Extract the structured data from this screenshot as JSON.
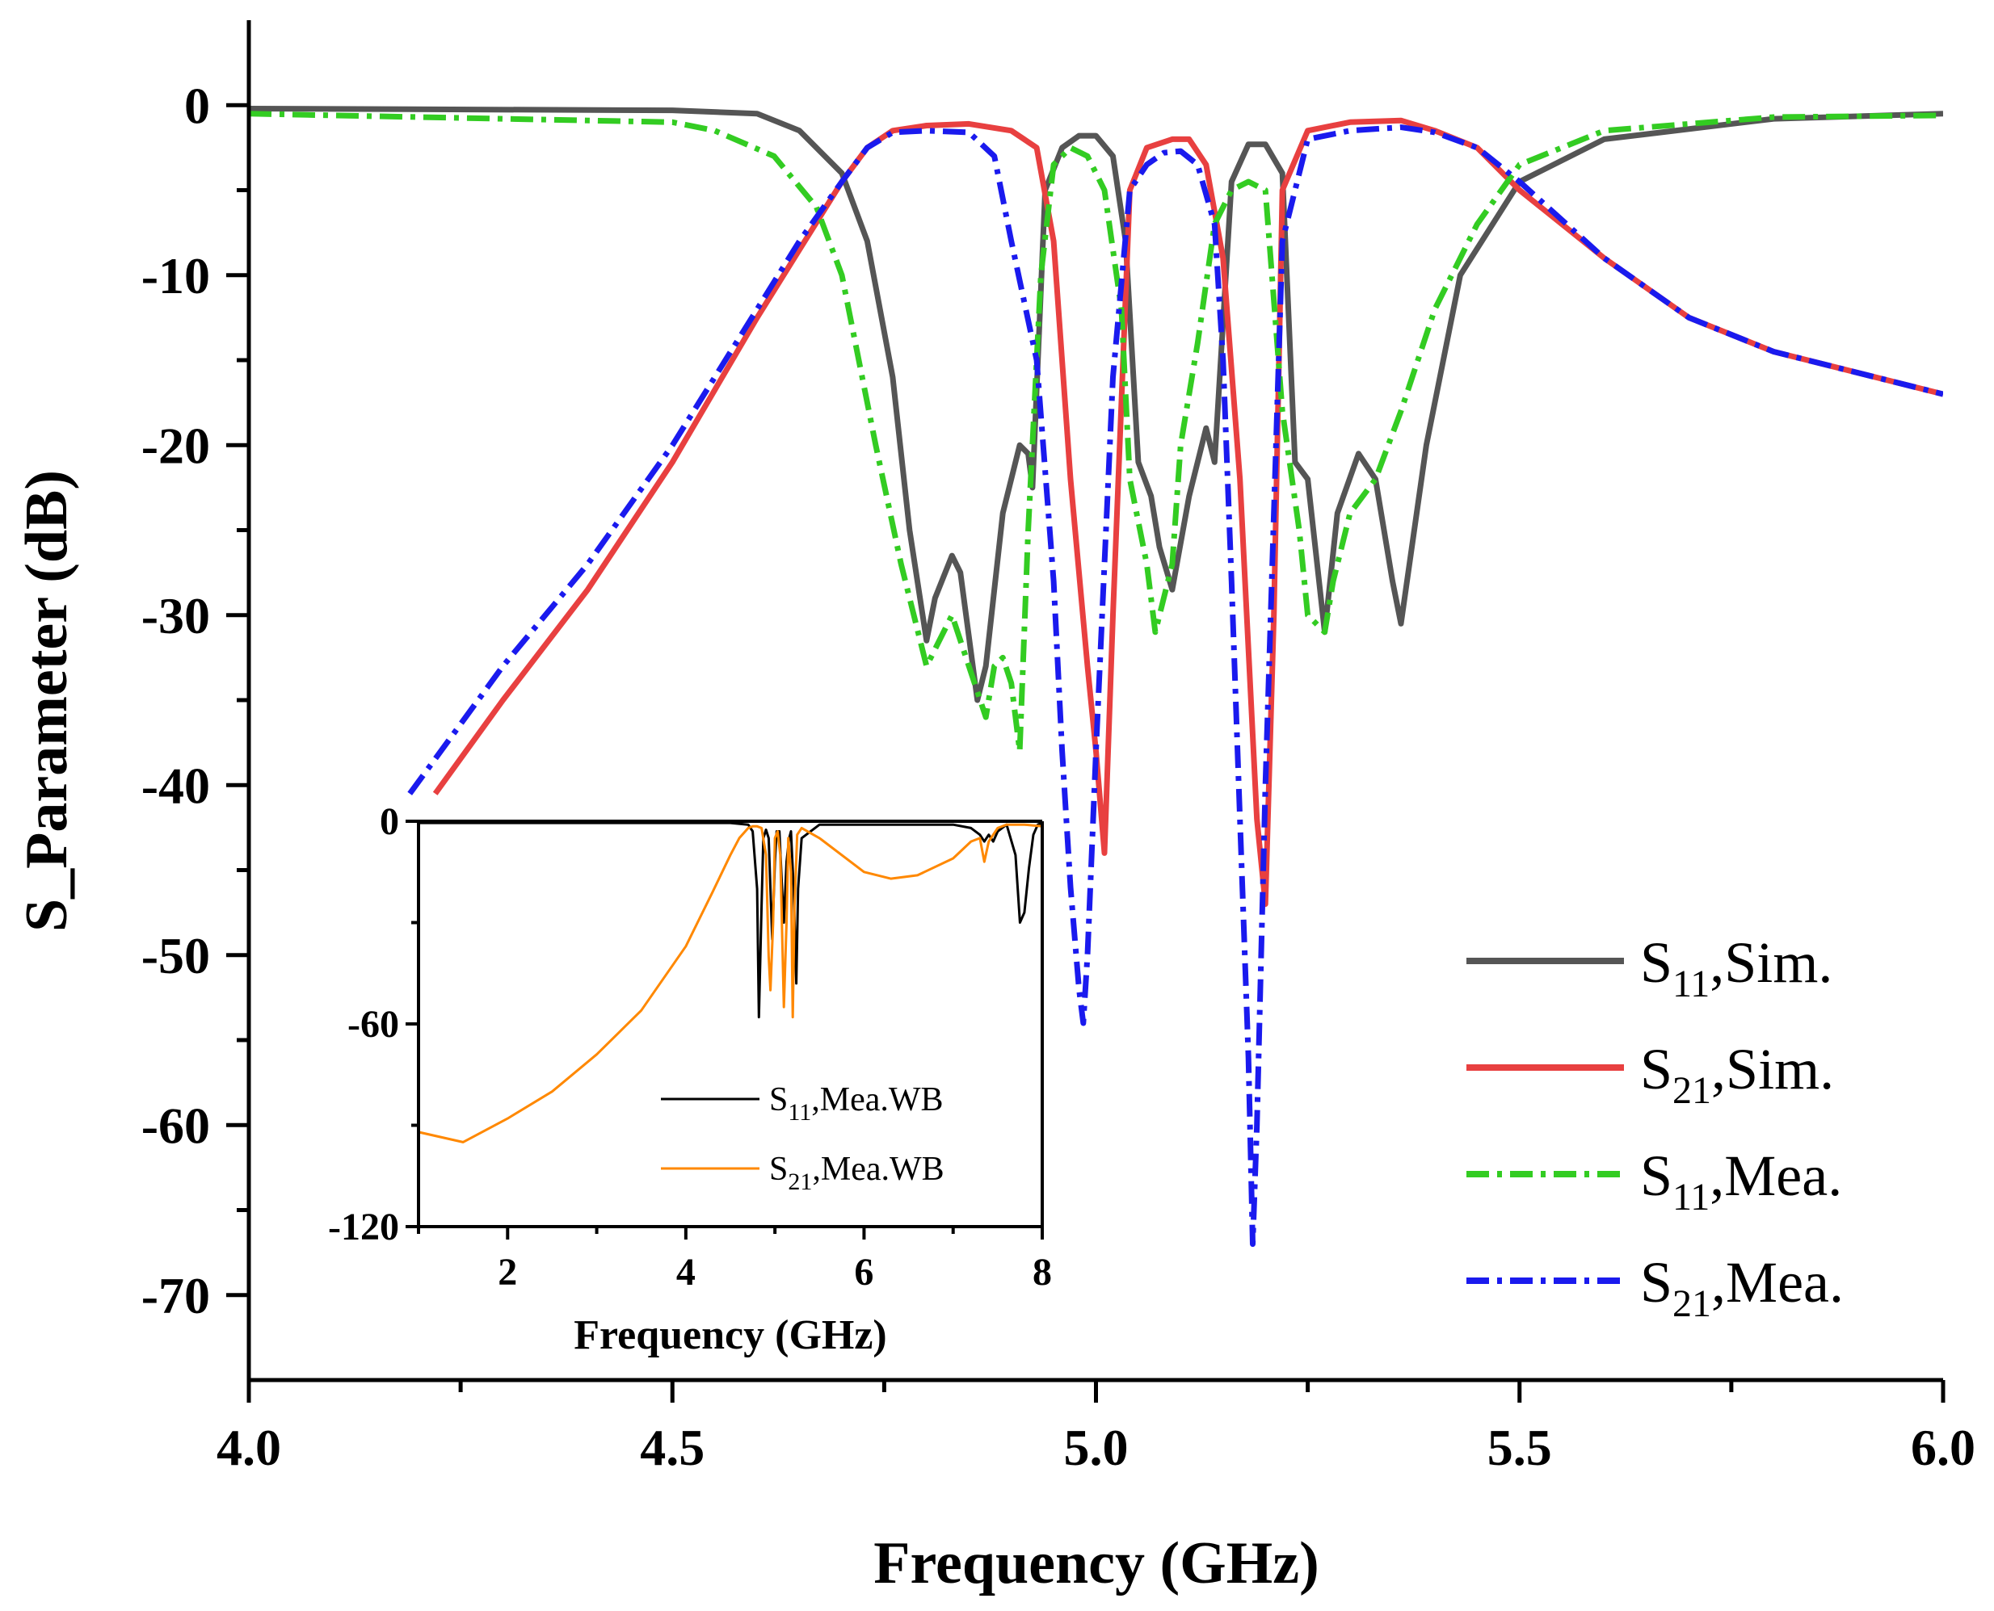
{
  "chart_data": [
    {
      "type": "line",
      "xlabel": "Frequency (GHz)",
      "ylabel": "S_Parameter (dB)",
      "xlim": [
        4.0,
        6.0
      ],
      "ylim": [
        -75,
        5
      ],
      "xticks": [
        "4.0",
        "4.5",
        "5.0",
        "5.5",
        "6.0"
      ],
      "yticks": [
        "0",
        "-10",
        "-20",
        "-30",
        "-40",
        "-50",
        "-60",
        "-70"
      ],
      "legend_position": "bottom-right",
      "series": [
        {
          "name": "S11,Sim.",
          "legend_main": "S",
          "legend_sub": "11",
          "legend_rest": ",Sim.",
          "color": "#555555",
          "style": "solid",
          "x": [
            4.0,
            4.5,
            4.6,
            4.65,
            4.7,
            4.73,
            4.76,
            4.78,
            4.8,
            4.81,
            4.83,
            4.84,
            4.86,
            4.87,
            4.89,
            4.91,
            4.92,
            4.925,
            4.94,
            4.96,
            4.98,
            5.0,
            5.02,
            5.035,
            5.05,
            5.065,
            5.075,
            5.09,
            5.11,
            5.13,
            5.14,
            5.16,
            5.18,
            5.2,
            5.22,
            5.235,
            5.25,
            5.27,
            5.285,
            5.31,
            5.33,
            5.35,
            5.36,
            5.39,
            5.43,
            5.5,
            5.6,
            5.8,
            6.0
          ],
          "y": [
            -0.2,
            -0.3,
            -0.5,
            -1.5,
            -4,
            -8,
            -16,
            -25,
            -31.5,
            -29,
            -26.5,
            -27.5,
            -35,
            -33,
            -24,
            -20,
            -20.5,
            -22.5,
            -5,
            -2.5,
            -1.8,
            -1.8,
            -3,
            -8,
            -21,
            -23,
            -26,
            -28.5,
            -23,
            -19,
            -21,
            -4.5,
            -2.3,
            -2.3,
            -4,
            -21,
            -22,
            -31,
            -24,
            -20.5,
            -22,
            -28,
            -30.5,
            -20,
            -10,
            -4.5,
            -2,
            -0.8,
            -0.5
          ]
        },
        {
          "name": "S21,Sim.",
          "legend_main": "S",
          "legend_sub": "21",
          "legend_rest": ",Sim.",
          "color": "#e84040",
          "style": "solid",
          "x": [
            4.22,
            4.3,
            4.4,
            4.5,
            4.6,
            4.65,
            4.7,
            4.73,
            4.76,
            4.8,
            4.85,
            4.9,
            4.93,
            4.95,
            4.97,
            4.99,
            5.0,
            5.01,
            5.02,
            5.04,
            5.06,
            5.09,
            5.11,
            5.13,
            5.15,
            5.17,
            5.18,
            5.19,
            5.2,
            5.21,
            5.22,
            5.25,
            5.3,
            5.36,
            5.4,
            5.45,
            5.5,
            5.6,
            5.7,
            5.8,
            6.0
          ],
          "y": [
            -40.5,
            -35,
            -28.5,
            -21,
            -12.5,
            -8.5,
            -4.5,
            -2.5,
            -1.5,
            -1.2,
            -1.1,
            -1.5,
            -2.5,
            -8,
            -22,
            -33,
            -38,
            -44,
            -30,
            -5,
            -2.5,
            -2.0,
            -2.0,
            -3.5,
            -9,
            -22,
            -32,
            -42,
            -47,
            -30,
            -5,
            -1.5,
            -1.0,
            -0.9,
            -1.5,
            -2.5,
            -5,
            -9,
            -12.5,
            -14.5,
            -17
          ]
        },
        {
          "name": "S11,Mea.",
          "legend_main": "S",
          "legend_sub": "11",
          "legend_rest": ",Mea.",
          "color": "#33cc22",
          "style": "dashdot",
          "x": [
            4.0,
            4.5,
            4.55,
            4.62,
            4.67,
            4.7,
            4.74,
            4.77,
            4.79,
            4.8,
            4.81,
            4.83,
            4.85,
            4.87,
            4.88,
            4.89,
            4.9,
            4.91,
            4.92,
            4.935,
            4.95,
            4.97,
            4.99,
            5.01,
            5.03,
            5.04,
            5.06,
            5.07,
            5.09,
            5.1,
            5.12,
            5.14,
            5.16,
            5.18,
            5.2,
            5.22,
            5.24,
            5.25,
            5.27,
            5.28,
            5.3,
            5.33,
            5.36,
            5.4,
            5.45,
            5.5,
            5.6,
            5.8,
            6.0
          ],
          "y": [
            -0.5,
            -1.0,
            -1.5,
            -3,
            -6,
            -10,
            -20,
            -27,
            -31,
            -33,
            -32,
            -30,
            -33,
            -36,
            -33,
            -32.5,
            -34,
            -38,
            -25,
            -10,
            -3.5,
            -2.5,
            -3,
            -5,
            -12,
            -22,
            -27,
            -31,
            -27,
            -20,
            -14,
            -7,
            -5,
            -4.5,
            -5,
            -18,
            -25,
            -30,
            -31,
            -28,
            -24,
            -22,
            -18,
            -12,
            -7,
            -3.5,
            -1.5,
            -0.7,
            -0.6
          ]
        },
        {
          "name": "S21,Mea.",
          "legend_main": "S",
          "legend_sub": "21",
          "legend_rest": ",Mea.",
          "color": "#1a1aee",
          "style": "dashdot",
          "x": [
            4.19,
            4.3,
            4.4,
            4.5,
            4.6,
            4.65,
            4.7,
            4.73,
            4.76,
            4.8,
            4.85,
            4.88,
            4.9,
            4.93,
            4.95,
            4.96,
            4.97,
            4.98,
            4.985,
            4.99,
            5.0,
            5.02,
            5.04,
            5.06,
            5.08,
            5.1,
            5.12,
            5.14,
            5.15,
            5.16,
            5.17,
            5.18,
            5.185,
            5.19,
            5.2,
            5.22,
            5.25,
            5.3,
            5.36,
            5.4,
            5.45,
            5.5,
            5.6,
            5.7,
            5.8,
            6.0
          ],
          "y": [
            -40.5,
            -33,
            -27,
            -20,
            -12,
            -8,
            -4.5,
            -2.5,
            -1.6,
            -1.5,
            -1.6,
            -3,
            -8,
            -15,
            -28,
            -38,
            -46,
            -52,
            -54,
            -50,
            -38,
            -16,
            -5,
            -3.5,
            -2.8,
            -2.7,
            -3.5,
            -7,
            -15,
            -28,
            -42,
            -56,
            -67,
            -60,
            -40,
            -8,
            -2,
            -1.5,
            -1.3,
            -1.6,
            -2.5,
            -4.5,
            -9,
            -12.5,
            -14.5,
            -17
          ]
        }
      ]
    },
    {
      "type": "line",
      "xlabel": "Frequency (GHz)",
      "ylabel": "",
      "xlim": [
        1,
        8
      ],
      "ylim": [
        -120,
        0
      ],
      "xticks": [
        "2",
        "4",
        "6",
        "8"
      ],
      "yticks": [
        "0",
        "-60",
        "-120"
      ],
      "legend_position": "bottom-right",
      "series": [
        {
          "name": "S11,Mea.WB",
          "legend_main": "S",
          "legend_sub": "11",
          "legend_rest": ",Mea.WB",
          "color": "#000000",
          "style": "solid",
          "x": [
            1.0,
            4.5,
            4.7,
            4.75,
            4.8,
            4.82,
            4.85,
            4.87,
            4.9,
            4.93,
            4.95,
            4.97,
            5.0,
            5.02,
            5.05,
            5.08,
            5.1,
            5.13,
            5.16,
            5.18,
            5.21,
            5.24,
            5.26,
            5.3,
            5.5,
            7.0,
            7.2,
            7.3,
            7.35,
            7.4,
            7.45,
            7.5,
            7.6,
            7.7,
            7.75,
            7.8,
            7.85,
            7.9,
            7.95,
            8.0
          ],
          "y": [
            -0.5,
            -0.5,
            -1,
            -3,
            -20,
            -58,
            -25,
            -5,
            -2.5,
            -5,
            -20,
            -35,
            -12,
            -3,
            -3,
            -20,
            -30,
            -12,
            -5,
            -3,
            -20,
            -48,
            -20,
            -5,
            -1,
            -1,
            -2,
            -4,
            -6,
            -4,
            -6,
            -3,
            -1,
            -10,
            -30,
            -27,
            -14,
            -4,
            -1,
            -0.5
          ]
        },
        {
          "name": "S21,Mea.WB",
          "legend_main": "S",
          "legend_sub": "21",
          "legend_rest": ",Mea.WB",
          "color": "#ff8800",
          "style": "solid",
          "x": [
            1.0,
            1.5,
            2.0,
            2.5,
            3.0,
            3.5,
            4.0,
            4.3,
            4.5,
            4.6,
            4.7,
            4.75,
            4.8,
            4.85,
            4.9,
            4.93,
            4.95,
            4.98,
            5.0,
            5.03,
            5.06,
            5.1,
            5.13,
            5.15,
            5.18,
            5.2,
            5.22,
            5.25,
            5.3,
            5.5,
            6.0,
            6.3,
            6.6,
            7.0,
            7.2,
            7.3,
            7.35,
            7.4,
            7.45,
            7.5,
            7.6,
            7.8,
            8.0
          ],
          "y": [
            -92,
            -95,
            -88,
            -80,
            -69,
            -56,
            -37,
            -21,
            -10,
            -5,
            -2,
            -1.5,
            -1.5,
            -2,
            -10,
            -40,
            -50,
            -30,
            -5,
            -3,
            -10,
            -55,
            -30,
            -5,
            -15,
            -58,
            -25,
            -4,
            -2,
            -5,
            -15,
            -17,
            -16,
            -11,
            -6,
            -5,
            -12,
            -6,
            -4,
            -2,
            -1,
            -1,
            -1.5
          ]
        }
      ]
    }
  ]
}
